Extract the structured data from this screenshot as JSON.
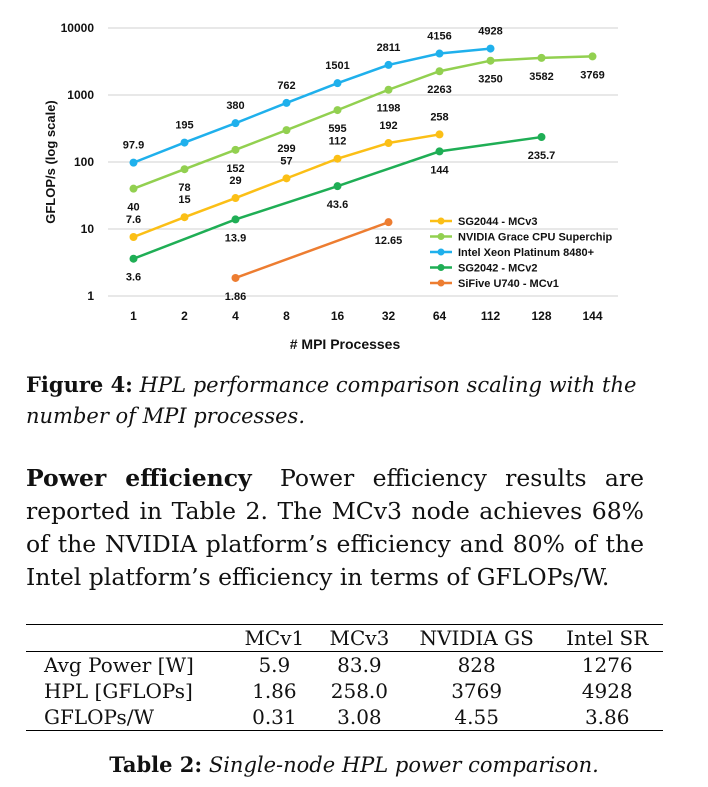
{
  "chart_data": {
    "type": "line",
    "y_scale": "log",
    "ylim": [
      1,
      10000
    ],
    "ylabel": "GFLOP/s (log scale)",
    "xlabel": "# MPI Processes",
    "y_ticks": [
      "1",
      "10",
      "100",
      "1000",
      "10000"
    ],
    "categories": [
      "1",
      "2",
      "4",
      "8",
      "16",
      "32",
      "64",
      "112",
      "128",
      "144"
    ],
    "legend_position": "bottom-right",
    "grid": "horizontal",
    "series": [
      {
        "name": "SG2044 - MCv3",
        "color": "#fbbf16",
        "x": [
          "1",
          "2",
          "4",
          "8",
          "16",
          "32",
          "64"
        ],
        "values": [
          7.6,
          15,
          29,
          57,
          112,
          192,
          258
        ],
        "labels": [
          "7.6",
          "15",
          "29",
          "57",
          "112",
          "192",
          "258"
        ]
      },
      {
        "name": "NVIDIA Grace CPU Superchip",
        "color": "#92d050",
        "x": [
          "1",
          "2",
          "4",
          "8",
          "16",
          "32",
          "64",
          "112",
          "128",
          "144"
        ],
        "values": [
          40,
          78,
          152,
          299,
          595,
          1198,
          2263,
          3250,
          3582,
          3769
        ],
        "labels": [
          "40",
          "78",
          "152",
          "299",
          "595",
          "1198",
          "2263",
          "3250",
          "3582",
          "3769"
        ]
      },
      {
        "name": "Intel Xeon Platinum 8480+",
        "color": "#1fb0ec",
        "x": [
          "1",
          "2",
          "4",
          "8",
          "16",
          "32",
          "64",
          "112"
        ],
        "values": [
          97.9,
          195,
          380,
          762,
          1501,
          2811,
          4156,
          4928
        ],
        "labels": [
          "97.9",
          "195",
          "380",
          "762",
          "1501",
          "2811",
          "4156",
          "4928"
        ]
      },
      {
        "name": "SG2042 - MCv2",
        "color": "#1fae55",
        "x": [
          "1",
          "4",
          "16",
          "64",
          "128"
        ],
        "values": [
          3.6,
          13.9,
          43.6,
          144,
          235.7
        ],
        "labels": [
          "3.6",
          "13.9",
          "43.6",
          "144",
          "235.7"
        ]
      },
      {
        "name": "SiFive U740 - MCv1",
        "color": "#ed7d31",
        "x": [
          "4",
          "32"
        ],
        "values": [
          1.86,
          12.65
        ],
        "labels": [
          "1.86",
          "12.65"
        ]
      }
    ]
  },
  "figure_caption": {
    "label": "Figure 4:",
    "text": "HPL performance comparison scaling with the number of MPI processes."
  },
  "paragraph": {
    "heading": "Power efficiency",
    "text": "Power efficiency results are reported in Table 2. The MCv3 node achieves 68% of the NVIDIA platform’s efficiency and 80% of the Intel platform’s efficiency in terms of GFLOPs/W."
  },
  "table": {
    "headers": [
      "",
      "MCv1",
      "MCv3",
      "NVIDIA GS",
      "Intel SR"
    ],
    "rows": [
      [
        "Avg Power [W]",
        "5.9",
        "83.9",
        "828",
        "1276"
      ],
      [
        "HPL [GFLOPs]",
        "1.86",
        "258.0",
        "3769",
        "4928"
      ],
      [
        "GFLOPs/W",
        "0.31",
        "3.08",
        "4.55",
        "3.86"
      ]
    ]
  },
  "table_caption": {
    "label": "Table 2:",
    "text": "Single-node HPL power comparison."
  }
}
